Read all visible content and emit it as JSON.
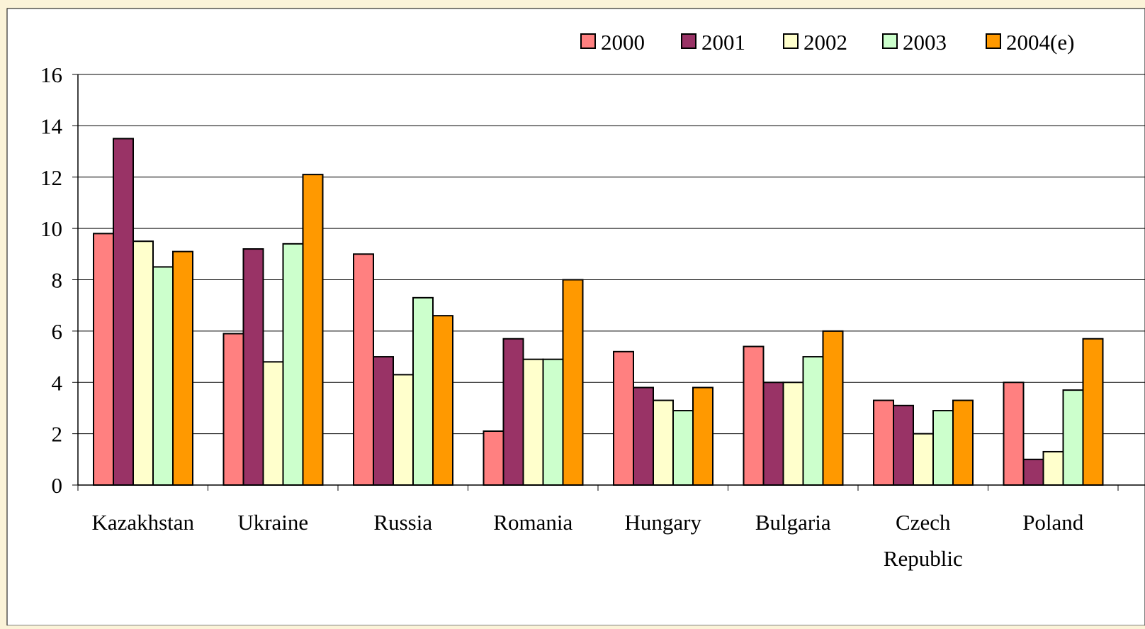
{
  "chart_data": {
    "type": "bar",
    "title": "",
    "xlabel": "",
    "ylabel": "",
    "ylim": [
      0,
      16
    ],
    "yticks": [
      0,
      2,
      4,
      6,
      8,
      10,
      12,
      14,
      16
    ],
    "grid": true,
    "legend_position": "top-right",
    "categories": [
      "Kazakhstan",
      "Ukraine",
      "Russia",
      "Romania",
      "Hungary",
      "Bulgaria",
      "Czech Republic",
      "Poland"
    ],
    "category_lines": [
      [
        "Kazakhstan"
      ],
      [
        "Ukraine"
      ],
      [
        "Russia"
      ],
      [
        "Romania"
      ],
      [
        "Hungary"
      ],
      [
        "Bulgaria"
      ],
      [
        "Czech",
        "Republic"
      ],
      [
        "Poland"
      ]
    ],
    "series": [
      {
        "name": "2000",
        "color": "#ff8080",
        "values": [
          9.8,
          5.9,
          9.0,
          2.1,
          5.2,
          5.4,
          3.3,
          4.0
        ]
      },
      {
        "name": "2001",
        "color": "#993366",
        "values": [
          13.5,
          9.2,
          5.0,
          5.7,
          3.8,
          4.0,
          3.1,
          1.0
        ]
      },
      {
        "name": "2002",
        "color": "#ffffcc",
        "values": [
          9.5,
          4.8,
          4.3,
          4.9,
          3.3,
          4.0,
          2.0,
          1.3
        ]
      },
      {
        "name": "2003",
        "color": "#ccffcc",
        "values": [
          8.5,
          9.4,
          7.3,
          4.9,
          2.9,
          5.0,
          2.9,
          3.7
        ]
      },
      {
        "name": "2004(e)",
        "color": "#ff9900",
        "values": [
          9.1,
          12.1,
          6.6,
          8.0,
          3.8,
          6.0,
          3.3,
          5.7
        ]
      }
    ]
  }
}
